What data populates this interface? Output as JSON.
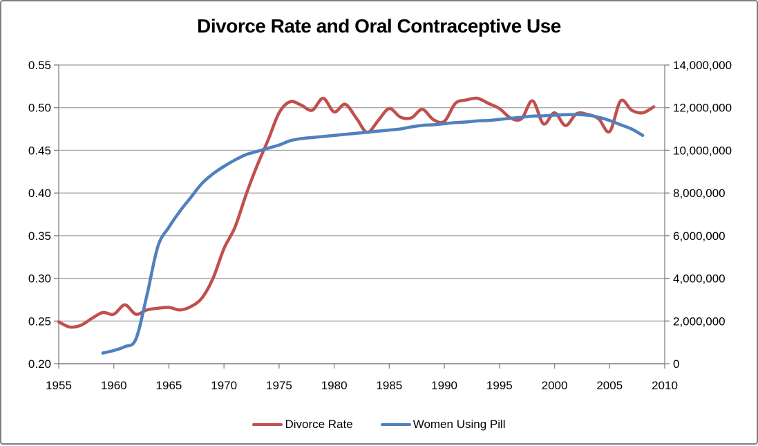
{
  "figure": {
    "background": "#FFFFFF",
    "border_color": "#7F7F7F",
    "gridline_color": "#ABABAB",
    "axis_line_color": "#898989",
    "text_color": "#000000"
  },
  "chart_data": {
    "type": "line",
    "title": "Divorce Rate and Oral Contraceptive Use",
    "grid": true,
    "legend_position": "bottom",
    "x_axis": {
      "min": 1955,
      "max": 2010,
      "tick_values": [
        1955,
        1960,
        1965,
        1970,
        1975,
        1980,
        1985,
        1990,
        1995,
        2000,
        2005,
        2010
      ],
      "tick_labels": [
        "1955",
        "1960",
        "1965",
        "1970",
        "1975",
        "1980",
        "1985",
        "1990",
        "1995",
        "2000",
        "2005",
        "2010"
      ]
    },
    "y_axis_left": {
      "min": 0.2,
      "max": 0.55,
      "tick_values": [
        0.55,
        0.5,
        0.45,
        0.4,
        0.35,
        0.3,
        0.25,
        0.2
      ],
      "tick_labels": [
        "0.55",
        "0.50",
        "0.45",
        "0.40",
        "0.35",
        "0.30",
        "0.25",
        "0.20"
      ]
    },
    "y_axis_right": {
      "min": 0,
      "max": 14000000,
      "tick_values": [
        14000000,
        12000000,
        10000000,
        8000000,
        6000000,
        4000000,
        2000000,
        0
      ],
      "tick_labels": [
        "14,000,000",
        "12,000,000",
        "10,000,000",
        "8,000,000",
        "6,000,000",
        "4,000,000",
        "2,000,000",
        "0"
      ]
    },
    "series": [
      {
        "name": "Divorce Rate",
        "color": "#C0504D",
        "axis": "left",
        "x": [
          1955,
          1956,
          1957,
          1958,
          1959,
          1960,
          1961,
          1962,
          1963,
          1964,
          1965,
          1966,
          1967,
          1968,
          1969,
          1970,
          1971,
          1972,
          1973,
          1974,
          1975,
          1976,
          1977,
          1978,
          1979,
          1980,
          1981,
          1982,
          1983,
          1984,
          1985,
          1986,
          1987,
          1988,
          1989,
          1990,
          1991,
          1992,
          1993,
          1994,
          1995,
          1996,
          1997,
          1998,
          1999,
          2000,
          2001,
          2002,
          2003,
          2004,
          2005,
          2006,
          2007,
          2008,
          2009
        ],
        "values": [
          0.249,
          0.243,
          0.245,
          0.253,
          0.26,
          0.258,
          0.269,
          0.258,
          0.263,
          0.265,
          0.266,
          0.263,
          0.267,
          0.277,
          0.3,
          0.335,
          0.36,
          0.398,
          0.432,
          0.462,
          0.494,
          0.507,
          0.503,
          0.497,
          0.511,
          0.495,
          0.504,
          0.488,
          0.471,
          0.485,
          0.499,
          0.489,
          0.488,
          0.498,
          0.486,
          0.484,
          0.505,
          0.509,
          0.511,
          0.505,
          0.499,
          0.488,
          0.487,
          0.508,
          0.481,
          0.494,
          0.479,
          0.493,
          0.492,
          0.487,
          0.472,
          0.508,
          0.497,
          0.494,
          0.501
        ]
      },
      {
        "name": "Women Using Pill",
        "color": "#4F81BD",
        "axis": "right",
        "x": [
          1959,
          1960,
          1961,
          1962,
          1963,
          1964,
          1965,
          1966,
          1967,
          1968,
          1969,
          1970,
          1971,
          1972,
          1973,
          1974,
          1975,
          1976,
          1977,
          1978,
          1979,
          1980,
          1981,
          1982,
          1983,
          1984,
          1985,
          1986,
          1987,
          1988,
          1989,
          1990,
          1991,
          1992,
          1993,
          1994,
          1995,
          1996,
          1997,
          1998,
          1999,
          2000,
          2001,
          2002,
          2003,
          2004,
          2005,
          2006,
          2007,
          2008
        ],
        "values": [
          500000,
          620000,
          800000,
          1150000,
          3200000,
          5500000,
          6400000,
          7150000,
          7800000,
          8450000,
          8900000,
          9250000,
          9550000,
          9800000,
          9950000,
          10100000,
          10250000,
          10450000,
          10550000,
          10600000,
          10650000,
          10700000,
          10750000,
          10800000,
          10850000,
          10900000,
          10950000,
          11000000,
          11100000,
          11170000,
          11200000,
          11250000,
          11300000,
          11330000,
          11380000,
          11400000,
          11450000,
          11500000,
          11550000,
          11600000,
          11620000,
          11650000,
          11670000,
          11680000,
          11650000,
          11550000,
          11400000,
          11200000,
          11000000,
          10700000
        ]
      }
    ]
  },
  "legend": {
    "items": [
      {
        "label": "Divorce Rate",
        "color": "#C0504D"
      },
      {
        "label": "Women Using Pill",
        "color": "#4F81BD"
      }
    ]
  }
}
